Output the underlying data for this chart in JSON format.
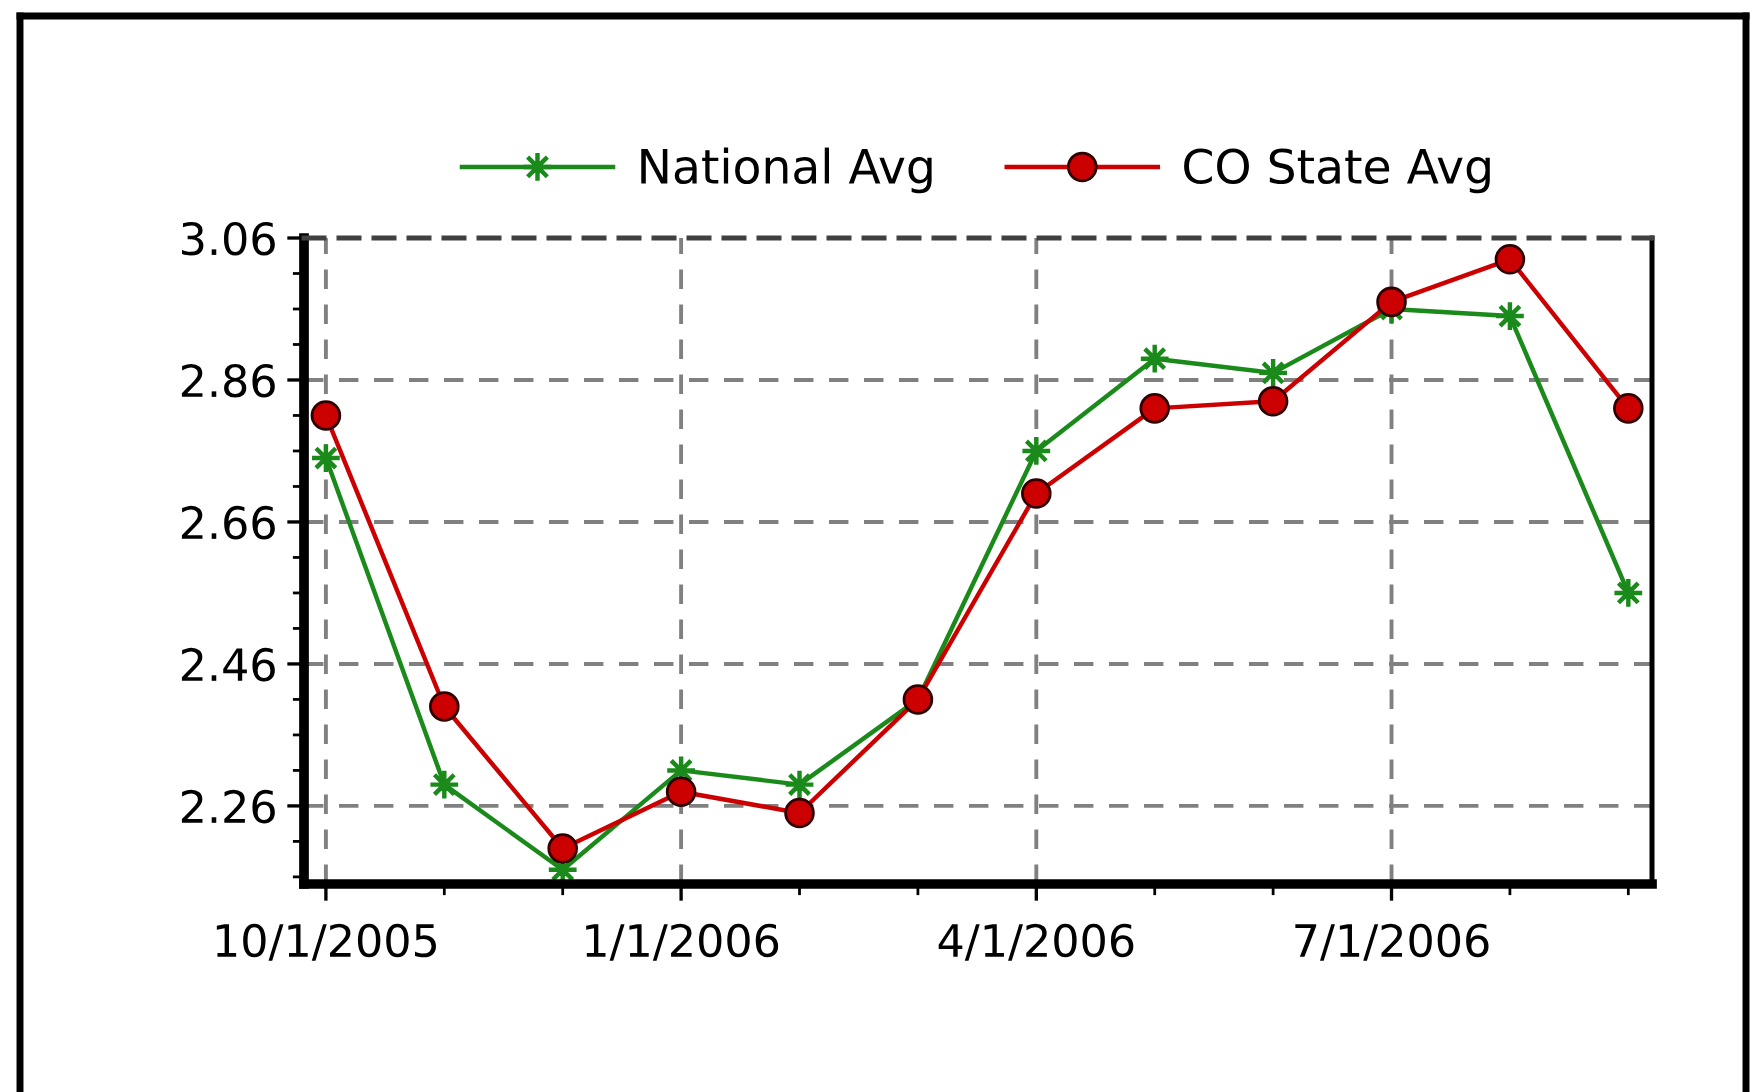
{
  "chart_data": {
    "type": "line",
    "categories": [
      "10/1/2005",
      null,
      null,
      "1/1/2006",
      null,
      null,
      "4/1/2006",
      null,
      null,
      "7/1/2006",
      null,
      null
    ],
    "series": [
      {
        "name": "National Avg",
        "color": "#1a8a1a",
        "marker": "star",
        "values": [
          2.75,
          2.29,
          2.17,
          2.31,
          2.29,
          2.41,
          2.76,
          2.89,
          2.87,
          2.96,
          2.95,
          2.56
        ]
      },
      {
        "name": "CO State Avg",
        "color": "#cc0000",
        "marker": "circle",
        "values": [
          2.81,
          2.4,
          2.2,
          2.28,
          2.25,
          2.41,
          2.7,
          2.82,
          2.83,
          2.97,
          3.03,
          2.82
        ]
      }
    ],
    "ylim": [
      2.15,
      3.06
    ],
    "yticks": [
      2.26,
      2.46,
      2.66,
      2.86,
      3.06
    ],
    "grid": true,
    "legend": "top",
    "line_style": "solid"
  }
}
